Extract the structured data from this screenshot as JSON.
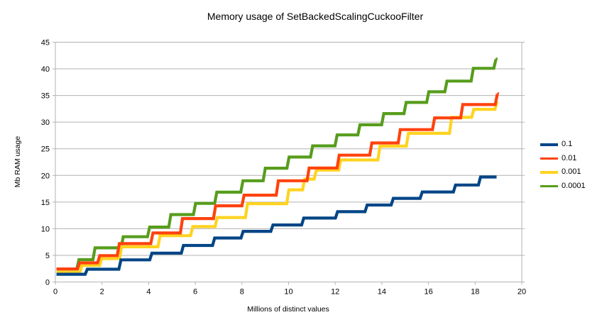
{
  "chart_data": {
    "type": "line",
    "subtype": "step-staircase",
    "title": "Memory usage of SetBackedScalingCuckooFilter",
    "xlabel": "Millions of distinct values",
    "ylabel": "Mb RAM usage",
    "xlim": [
      0,
      20
    ],
    "ylim": [
      0,
      45
    ],
    "x_ticks": [
      0,
      2,
      4,
      6,
      8,
      10,
      12,
      14,
      16,
      18,
      20
    ],
    "y_ticks": [
      0,
      5,
      10,
      15,
      20,
      25,
      30,
      35,
      40,
      45
    ],
    "grid": "horizontal-only",
    "legend_position": "right",
    "colors": {
      "grid": "#b3b3b3",
      "axis": "#b3b3b3",
      "background": "#ffffff"
    },
    "series": [
      {
        "name": "0.1",
        "color": "#004586",
        "x_end": 18.92,
        "steps": [
          [
            0.05,
            1.45
          ],
          [
            1.28,
            2.4
          ],
          [
            2.72,
            4.15
          ],
          [
            4.05,
            5.4
          ],
          [
            5.4,
            6.85
          ],
          [
            6.74,
            8.25
          ],
          [
            7.96,
            9.5
          ],
          [
            9.24,
            10.7
          ],
          [
            10.56,
            12.0
          ],
          [
            12.01,
            13.2
          ],
          [
            13.28,
            14.45
          ],
          [
            14.4,
            15.7
          ],
          [
            15.64,
            16.9
          ],
          [
            17.07,
            18.2
          ],
          [
            18.14,
            19.7
          ]
        ]
      },
      {
        "name": "0.01",
        "color": "#ff420e",
        "x_end": 18.95,
        "steps": [
          [
            0.05,
            2.45
          ],
          [
            0.95,
            3.6
          ],
          [
            1.81,
            4.95
          ],
          [
            2.65,
            7.2
          ],
          [
            4.09,
            9.2
          ],
          [
            5.36,
            11.9
          ],
          [
            6.78,
            14.3
          ],
          [
            8.0,
            16.3
          ],
          [
            9.47,
            19.0
          ],
          [
            10.79,
            21.4
          ],
          [
            12.08,
            23.8
          ],
          [
            13.48,
            26.1
          ],
          [
            14.7,
            28.6
          ],
          [
            16.17,
            30.8
          ],
          [
            17.38,
            33.3
          ],
          [
            18.86,
            35.3
          ]
        ]
      },
      {
        "name": "0.001",
        "color": "#ffd320",
        "x_end": 18.95,
        "steps": [
          [
            0.05,
            1.85
          ],
          [
            1.05,
            3.1
          ],
          [
            1.9,
            4.4
          ],
          [
            2.75,
            6.6
          ],
          [
            4.4,
            8.7
          ],
          [
            5.8,
            10.4
          ],
          [
            6.85,
            12.1
          ],
          [
            8.15,
            14.7
          ],
          [
            9.92,
            17.3
          ],
          [
            10.6,
            19.3
          ],
          [
            11.1,
            21.0
          ],
          [
            12.15,
            22.9
          ],
          [
            13.83,
            25.5
          ],
          [
            15.05,
            27.9
          ],
          [
            16.9,
            30.9
          ],
          [
            17.85,
            32.4
          ],
          [
            18.85,
            33.9
          ]
        ]
      },
      {
        "name": "0.0001",
        "color": "#579d1c",
        "x_end": 18.88,
        "steps": [
          [
            0.05,
            2.45
          ],
          [
            0.92,
            4.2
          ],
          [
            1.61,
            6.4
          ],
          [
            2.82,
            8.5
          ],
          [
            3.95,
            10.3
          ],
          [
            4.86,
            12.65
          ],
          [
            5.92,
            14.75
          ],
          [
            6.83,
            16.85
          ],
          [
            7.95,
            19.0
          ],
          [
            8.91,
            21.35
          ],
          [
            9.93,
            23.45
          ],
          [
            10.94,
            25.55
          ],
          [
            11.99,
            27.6
          ],
          [
            12.97,
            29.5
          ],
          [
            13.99,
            31.6
          ],
          [
            14.95,
            33.7
          ],
          [
            15.92,
            35.7
          ],
          [
            16.7,
            37.7
          ],
          [
            17.83,
            40.1
          ],
          [
            18.8,
            41.8
          ]
        ]
      }
    ]
  }
}
